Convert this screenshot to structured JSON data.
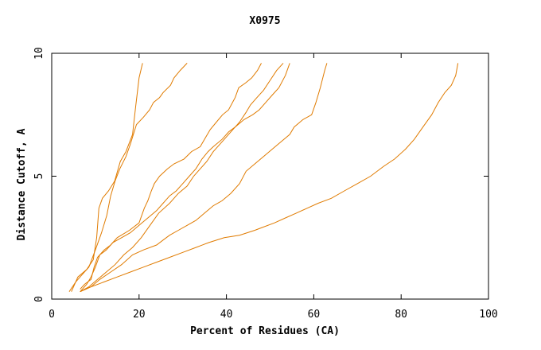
{
  "chart_data": {
    "type": "line",
    "title": "X0975",
    "xlabel": "Percent of Residues (CA)",
    "ylabel": "Distance Cutoff, A",
    "xlim": [
      0,
      100
    ],
    "ylim": [
      0,
      10
    ],
    "x_ticks": [
      "0",
      "20",
      "40",
      "60",
      "80",
      "100"
    ],
    "y_ticks": [
      "0",
      "5",
      "10"
    ],
    "grid": false,
    "legend": "none",
    "line_color": "#e07b00",
    "series": [
      {
        "points": [
          [
            4.5,
            0.3
          ],
          [
            6,
            0.9
          ],
          [
            8,
            1.2
          ],
          [
            9.5,
            1.6
          ],
          [
            10.3,
            2.5
          ],
          [
            10.8,
            3.7
          ],
          [
            11.6,
            4.1
          ],
          [
            13,
            4.4
          ],
          [
            14.4,
            4.8
          ],
          [
            15.7,
            5.6
          ],
          [
            17,
            6.0
          ],
          [
            18.5,
            6.7
          ],
          [
            19.2,
            7.8
          ],
          [
            20,
            9.0
          ],
          [
            20.8,
            9.6
          ]
        ]
      },
      {
        "points": [
          [
            4,
            0.3
          ],
          [
            5.5,
            0.7
          ],
          [
            7,
            1.0
          ],
          [
            8.5,
            1.3
          ],
          [
            10,
            2.0
          ],
          [
            11.4,
            2.7
          ],
          [
            12.6,
            3.4
          ],
          [
            13.5,
            4.2
          ],
          [
            14.5,
            4.8
          ],
          [
            15.6,
            5.3
          ],
          [
            17,
            5.8
          ],
          [
            18,
            6.3
          ],
          [
            19.4,
            7.1
          ],
          [
            21,
            7.4
          ],
          [
            22.4,
            7.7
          ],
          [
            23.3,
            8.0
          ],
          [
            24.7,
            8.2
          ],
          [
            25.5,
            8.4
          ],
          [
            27.2,
            8.7
          ],
          [
            28,
            9.0
          ],
          [
            29.4,
            9.3
          ],
          [
            31,
            9.6
          ]
        ]
      },
      {
        "points": [
          [
            6.5,
            0.4
          ],
          [
            7.5,
            0.6
          ],
          [
            9,
            0.8
          ],
          [
            9.7,
            1.3
          ],
          [
            10.5,
            1.7
          ],
          [
            12,
            2.0
          ],
          [
            13.5,
            2.2
          ],
          [
            15,
            2.5
          ],
          [
            17.8,
            2.8
          ],
          [
            20,
            3.1
          ],
          [
            21.2,
            3.7
          ],
          [
            22,
            4.0
          ],
          [
            22.8,
            4.4
          ],
          [
            23.5,
            4.7
          ],
          [
            24.7,
            5.0
          ],
          [
            26.5,
            5.3
          ],
          [
            28,
            5.5
          ],
          [
            30.3,
            5.7
          ],
          [
            32,
            6.0
          ],
          [
            34,
            6.2
          ],
          [
            35.3,
            6.6
          ],
          [
            36.3,
            6.9
          ],
          [
            37.7,
            7.2
          ],
          [
            39.1,
            7.5
          ],
          [
            40.5,
            7.7
          ],
          [
            42,
            8.2
          ],
          [
            42.8,
            8.6
          ],
          [
            44.4,
            8.8
          ],
          [
            45.8,
            9.0
          ],
          [
            47.1,
            9.3
          ],
          [
            48,
            9.6
          ]
        ]
      },
      {
        "points": [
          [
            6.5,
            0.3
          ],
          [
            8,
            0.6
          ],
          [
            9,
            0.9
          ],
          [
            10,
            1.3
          ],
          [
            11,
            1.8
          ],
          [
            12.5,
            2.0
          ],
          [
            14,
            2.3
          ],
          [
            16,
            2.5
          ],
          [
            18,
            2.7
          ],
          [
            20,
            3.0
          ],
          [
            22,
            3.3
          ],
          [
            24,
            3.6
          ],
          [
            25.5,
            3.9
          ],
          [
            27,
            4.2
          ],
          [
            28.5,
            4.4
          ],
          [
            30,
            4.7
          ],
          [
            31.5,
            5.0
          ],
          [
            33,
            5.3
          ],
          [
            34.4,
            5.7
          ],
          [
            35.8,
            6.0
          ],
          [
            37,
            6.2
          ],
          [
            39,
            6.5
          ],
          [
            40.5,
            6.8
          ],
          [
            42,
            7.0
          ],
          [
            44,
            7.3
          ],
          [
            46,
            7.5
          ],
          [
            47.5,
            7.7
          ],
          [
            49,
            8.0
          ],
          [
            50.5,
            8.3
          ],
          [
            52,
            8.6
          ],
          [
            53.5,
            9.1
          ],
          [
            54.5,
            9.6
          ]
        ]
      },
      {
        "points": [
          [
            6.5,
            0.3
          ],
          [
            8.5,
            0.5
          ],
          [
            10.5,
            0.8
          ],
          [
            12.5,
            1.1
          ],
          [
            14.5,
            1.4
          ],
          [
            16.5,
            1.8
          ],
          [
            18.5,
            2.1
          ],
          [
            20.5,
            2.5
          ],
          [
            22.5,
            3.0
          ],
          [
            24.5,
            3.5
          ],
          [
            27,
            3.9
          ],
          [
            29,
            4.3
          ],
          [
            31,
            4.6
          ],
          [
            32.5,
            5.0
          ],
          [
            34,
            5.3
          ],
          [
            35.5,
            5.6
          ],
          [
            37,
            6.0
          ],
          [
            38.5,
            6.3
          ],
          [
            40,
            6.6
          ],
          [
            41.5,
            6.9
          ],
          [
            43,
            7.2
          ],
          [
            44.5,
            7.6
          ],
          [
            45.5,
            7.9
          ],
          [
            47,
            8.2
          ],
          [
            48.5,
            8.5
          ],
          [
            50,
            8.9
          ],
          [
            51.5,
            9.3
          ],
          [
            53,
            9.6
          ]
        ]
      },
      {
        "points": [
          [
            6.5,
            0.3
          ],
          [
            9,
            0.5
          ],
          [
            11,
            0.8
          ],
          [
            13.5,
            1.1
          ],
          [
            16,
            1.4
          ],
          [
            18.5,
            1.8
          ],
          [
            21,
            2.0
          ],
          [
            24,
            2.2
          ],
          [
            25.5,
            2.4
          ],
          [
            27,
            2.6
          ],
          [
            29,
            2.8
          ],
          [
            31,
            3.0
          ],
          [
            33,
            3.2
          ],
          [
            35,
            3.5
          ],
          [
            37,
            3.8
          ],
          [
            39,
            4.0
          ],
          [
            41,
            4.3
          ],
          [
            43,
            4.7
          ],
          [
            44.5,
            5.2
          ],
          [
            46.5,
            5.5
          ],
          [
            48.5,
            5.8
          ],
          [
            50.5,
            6.1
          ],
          [
            52.5,
            6.4
          ],
          [
            54.5,
            6.7
          ],
          [
            55.5,
            7.0
          ],
          [
            57.5,
            7.3
          ],
          [
            59.5,
            7.5
          ],
          [
            60.5,
            8.0
          ],
          [
            61.5,
            8.6
          ],
          [
            62.5,
            9.3
          ],
          [
            63,
            9.6
          ]
        ]
      },
      {
        "points": [
          [
            6.5,
            0.3
          ],
          [
            9,
            0.5
          ],
          [
            12,
            0.7
          ],
          [
            15,
            0.9
          ],
          [
            18,
            1.1
          ],
          [
            21,
            1.3
          ],
          [
            24,
            1.5
          ],
          [
            27,
            1.7
          ],
          [
            30,
            1.9
          ],
          [
            33,
            2.1
          ],
          [
            36,
            2.3
          ],
          [
            39.5,
            2.5
          ],
          [
            43,
            2.6
          ],
          [
            46.5,
            2.8
          ],
          [
            48,
            2.9
          ],
          [
            51,
            3.1
          ],
          [
            53.5,
            3.3
          ],
          [
            56,
            3.5
          ],
          [
            58.5,
            3.7
          ],
          [
            61,
            3.9
          ],
          [
            64,
            4.1
          ],
          [
            67,
            4.4
          ],
          [
            70,
            4.7
          ],
          [
            73,
            5.0
          ],
          [
            76,
            5.4
          ],
          [
            78.5,
            5.7
          ],
          [
            81,
            6.1
          ],
          [
            83,
            6.5
          ],
          [
            85,
            7.0
          ],
          [
            87,
            7.5
          ],
          [
            88.5,
            8.0
          ],
          [
            90,
            8.4
          ],
          [
            91.5,
            8.7
          ],
          [
            92.5,
            9.1
          ],
          [
            93,
            9.6
          ]
        ]
      }
    ]
  }
}
